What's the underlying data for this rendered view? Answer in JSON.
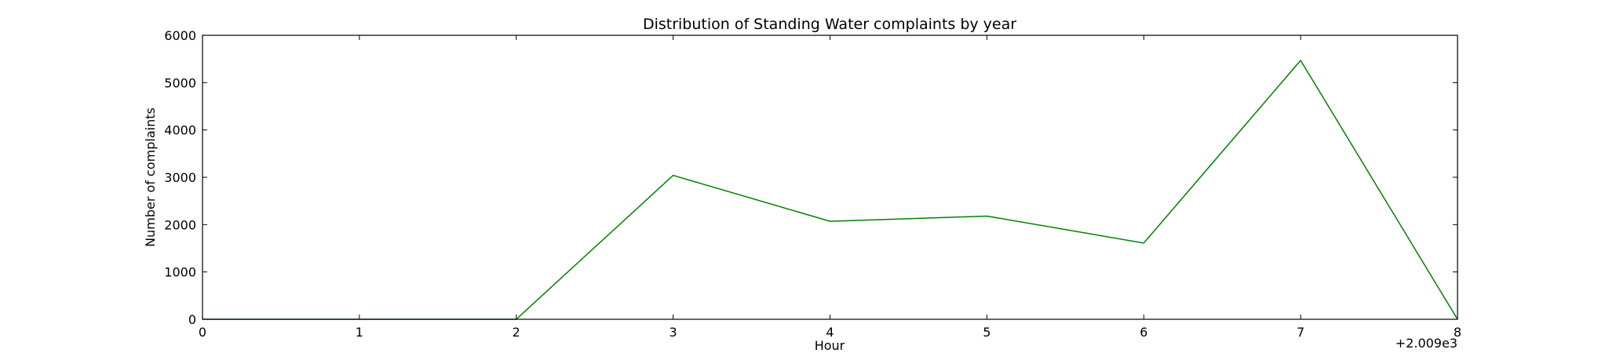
{
  "chart_data": {
    "type": "line",
    "title": "Distribution of  Standing Water complaints by year",
    "xlabel": "Hour",
    "ylabel": "Number of complaints",
    "x_offset_label": "+2.009e3",
    "x": [
      0,
      1,
      2,
      3,
      4,
      5,
      6,
      7,
      8
    ],
    "x_tick_labels": [
      "0",
      "1",
      "2",
      "3",
      "4",
      "5",
      "6",
      "7",
      "8"
    ],
    "y_ticks": [
      0,
      1000,
      2000,
      3000,
      4000,
      5000,
      6000
    ],
    "y_tick_labels": [
      "0",
      "1000",
      "2000",
      "3000",
      "4000",
      "5000",
      "6000"
    ],
    "xlim": [
      0,
      8
    ],
    "ylim": [
      0,
      6000
    ],
    "grid": false,
    "series": [
      {
        "values": [
          0,
          0,
          0,
          3040,
          2070,
          2180,
          1610,
          5470,
          0
        ],
        "color": "#008000"
      }
    ]
  }
}
